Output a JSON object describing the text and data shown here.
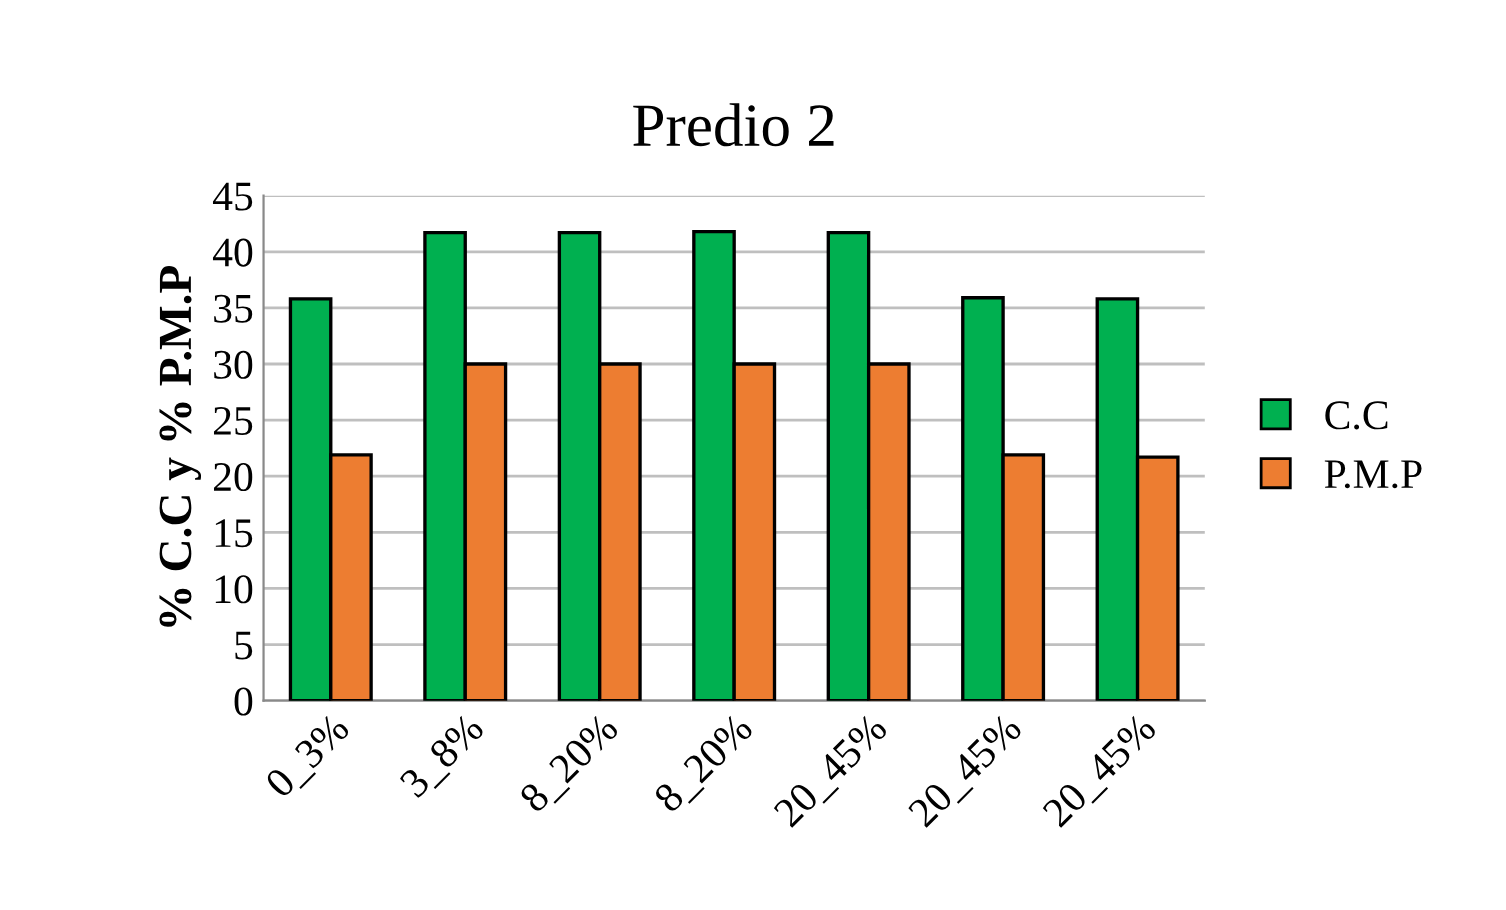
{
  "chart_data": {
    "type": "bar",
    "title": "Predio 2",
    "ylabel": "% C.C y % P.M.P",
    "categories": [
      "0_3%",
      "3_8%",
      "8_20%",
      "8_20%",
      "20_45%",
      "20_45%",
      "20_45%"
    ],
    "series": [
      {
        "name": "C.C",
        "color": "#00b050",
        "values": [
          35.8,
          41.7,
          41.7,
          41.8,
          41.7,
          35.9,
          35.8
        ]
      },
      {
        "name": "P.M.P",
        "color": "#ed7d31",
        "values": [
          21.9,
          30.0,
          30.0,
          30.0,
          30.0,
          21.9,
          21.7
        ]
      }
    ],
    "ylim": [
      0,
      45
    ],
    "yticks": [
      0,
      5,
      10,
      15,
      20,
      25,
      30,
      35,
      40,
      45
    ],
    "grid": "y",
    "legend": "right"
  }
}
